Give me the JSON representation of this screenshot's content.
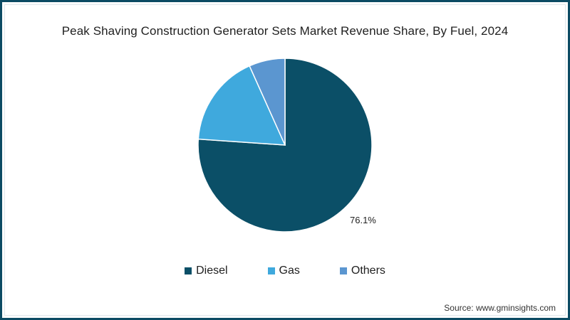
{
  "title": "Peak Shaving Construction Generator Sets Market Revenue Share, By Fuel, 2024",
  "source": "Source: www.gminsights.com",
  "legend": [
    {
      "label": "Diesel",
      "color": "#0b4f67"
    },
    {
      "label": "Gas",
      "color": "#3fa9dd"
    },
    {
      "label": "Others",
      "color": "#5b96d0"
    }
  ],
  "data_label": "76.1%",
  "colors": {
    "border": "#0b4a63",
    "separator": "#ffffff"
  },
  "chart_data": {
    "type": "pie",
    "title": "Peak Shaving Construction Generator Sets Market Revenue Share, By Fuel, 2024",
    "categories": [
      "Diesel",
      "Gas",
      "Others"
    ],
    "values": [
      76.1,
      17.2,
      6.7
    ],
    "labels_shown": {
      "Diesel": "76.1%"
    },
    "start_angle": "12 o'clock, clockwise",
    "legend_position": "bottom",
    "source": "Source: www.gminsights.com"
  }
}
